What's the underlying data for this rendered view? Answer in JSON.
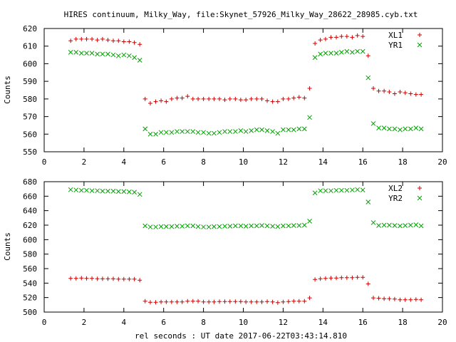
{
  "figure": {
    "title": "HIRES continuum, Milky_Way, file:Skynet_57926_Milky_Way_28622_28985.cyb.txt",
    "xlabel": "rel seconds : UT date 2017-06-22T03:43:14.810"
  },
  "colors": {
    "red_series": "#cc0000",
    "green_series": "#00a000"
  },
  "chart_data": [
    {
      "type": "scatter",
      "ylabel": "Counts",
      "xlim": [
        0,
        20
      ],
      "ylim": [
        550,
        620
      ],
      "xticks": [
        0,
        2,
        4,
        6,
        8,
        10,
        12,
        14,
        16,
        18,
        20
      ],
      "yticks": [
        550,
        560,
        570,
        580,
        590,
        600,
        610,
        620
      ],
      "grid": false,
      "legend_position": "top-right",
      "x": [
        1.33,
        1.6,
        1.87,
        2.13,
        2.4,
        2.67,
        2.93,
        3.2,
        3.47,
        3.73,
        4.0,
        4.27,
        4.53,
        4.8,
        5.07,
        5.33,
        5.6,
        5.87,
        6.13,
        6.4,
        6.67,
        6.93,
        7.2,
        7.47,
        7.73,
        8.0,
        8.27,
        8.53,
        8.8,
        9.07,
        9.33,
        9.6,
        9.87,
        10.13,
        10.4,
        10.67,
        10.93,
        11.2,
        11.47,
        11.73,
        12.0,
        12.27,
        12.53,
        12.8,
        13.07,
        13.33,
        13.6,
        13.87,
        14.13,
        14.4,
        14.67,
        14.93,
        15.2,
        15.47,
        15.73,
        16.0,
        16.27,
        16.53,
        16.8,
        17.07,
        17.33,
        17.6,
        17.87,
        18.13,
        18.4,
        18.67,
        18.93
      ],
      "series": [
        {
          "name": "XL1",
          "marker": "plus",
          "color": "#cc0000",
          "values": [
            613,
            614,
            614,
            614,
            614,
            613.5,
            614,
            613.5,
            613,
            613,
            612.5,
            612.5,
            612,
            611,
            580,
            577.5,
            578.5,
            579,
            578.5,
            580,
            580.5,
            580.5,
            581.5,
            580,
            580,
            580,
            580,
            580,
            580,
            579.5,
            580,
            580,
            579.5,
            579.5,
            580,
            580,
            580,
            579,
            578.5,
            578.5,
            580,
            580,
            580.5,
            581,
            580.5,
            586,
            611.5,
            613.5,
            614,
            615,
            615,
            615.5,
            615.5,
            615,
            616,
            615.5,
            604.5,
            586,
            584.5,
            584.5,
            584,
            583,
            584,
            583.5,
            583,
            582.5,
            582.5
          ]
        },
        {
          "name": "YR1",
          "marker": "cross",
          "color": "#00a000",
          "values": [
            606.5,
            606.5,
            606,
            606,
            606,
            605.5,
            605.5,
            605.5,
            605,
            604.5,
            605,
            604.5,
            603.5,
            602,
            563,
            560,
            560,
            561,
            561,
            561,
            561.5,
            561.5,
            561.5,
            561.5,
            561,
            561,
            560.5,
            560.5,
            561,
            561.5,
            561.5,
            561.5,
            562,
            561.5,
            562,
            562.5,
            562.5,
            562,
            561.5,
            560.5,
            562.5,
            562.5,
            562.5,
            563,
            563,
            569.5,
            603.5,
            605.5,
            606,
            606,
            606,
            606.5,
            607,
            606.5,
            607,
            607,
            592,
            566,
            563.5,
            563.5,
            563,
            563,
            562.5,
            563,
            563,
            563.5,
            563
          ]
        }
      ]
    },
    {
      "type": "scatter",
      "ylabel": "Counts",
      "xlim": [
        0,
        20
      ],
      "ylim": [
        500,
        680
      ],
      "xticks": [
        0,
        2,
        4,
        6,
        8,
        10,
        12,
        14,
        16,
        18,
        20
      ],
      "yticks": [
        500,
        520,
        540,
        560,
        580,
        600,
        620,
        640,
        660,
        680
      ],
      "grid": false,
      "legend_position": "top-right",
      "x": [
        1.33,
        1.6,
        1.87,
        2.13,
        2.4,
        2.67,
        2.93,
        3.2,
        3.47,
        3.73,
        4.0,
        4.27,
        4.53,
        4.8,
        5.07,
        5.33,
        5.6,
        5.87,
        6.13,
        6.4,
        6.67,
        6.93,
        7.2,
        7.47,
        7.73,
        8.0,
        8.27,
        8.53,
        8.8,
        9.07,
        9.33,
        9.6,
        9.87,
        10.13,
        10.4,
        10.67,
        10.93,
        11.2,
        11.47,
        11.73,
        12.0,
        12.27,
        12.53,
        12.8,
        13.07,
        13.33,
        13.6,
        13.87,
        14.13,
        14.4,
        14.67,
        14.93,
        15.2,
        15.47,
        15.73,
        16.0,
        16.27,
        16.53,
        16.8,
        17.07,
        17.33,
        17.6,
        17.87,
        18.13,
        18.4,
        18.67,
        18.93
      ],
      "series": [
        {
          "name": "XL2",
          "marker": "plus",
          "color": "#cc0000",
          "values": [
            546.5,
            546.5,
            547,
            546.5,
            546.5,
            546,
            546,
            546,
            546,
            545.5,
            545.5,
            545.5,
            545.5,
            544,
            515,
            513.5,
            513.5,
            514,
            514,
            514,
            514,
            514,
            515,
            515,
            515,
            514,
            514,
            514,
            514.5,
            514.5,
            514.5,
            514.5,
            514.5,
            514,
            514,
            514,
            514,
            514.5,
            514,
            513,
            514,
            514.5,
            515,
            515,
            515,
            519.5,
            545,
            546,
            546.5,
            547,
            547,
            547.5,
            547.5,
            547.5,
            548,
            548,
            539,
            519.5,
            519,
            518.5,
            518.5,
            518,
            517,
            517,
            517,
            517.5,
            517
          ]
        },
        {
          "name": "YR2",
          "marker": "cross",
          "color": "#00a000",
          "values": [
            669,
            668.5,
            668,
            668,
            667.5,
            667.5,
            667,
            667,
            667,
            666.5,
            666.5,
            666,
            665.5,
            662.5,
            619,
            617.5,
            617.5,
            618,
            618,
            618,
            618.5,
            618.5,
            619,
            619,
            618,
            617.5,
            617.5,
            618,
            618,
            618.5,
            618.5,
            619,
            619,
            618.5,
            619,
            619,
            619.5,
            619,
            618.5,
            618,
            619,
            619,
            619.5,
            619.5,
            620,
            625.5,
            664.5,
            667.5,
            667.5,
            667.5,
            668,
            668,
            668,
            668.5,
            669,
            668.5,
            652,
            623.5,
            619.5,
            620,
            620,
            619.5,
            619,
            619.5,
            620,
            620.5,
            619
          ]
        }
      ]
    }
  ]
}
